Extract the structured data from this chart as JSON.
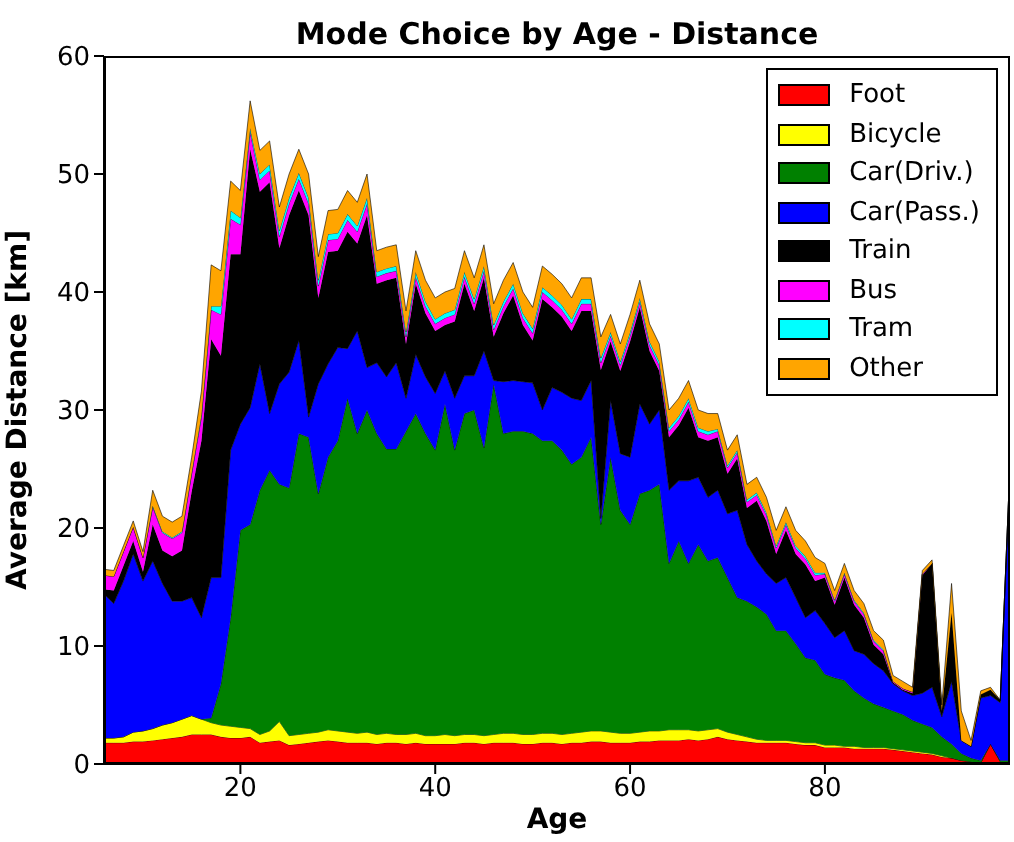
{
  "chart_data": {
    "type": "area",
    "title": "Mode Choice by Age - Distance",
    "xlabel": "Age",
    "ylabel": "Average Distance [km]",
    "stacked": true,
    "legend": "top right",
    "xlim": [
      6,
      99
    ],
    "xticks": [
      20,
      40,
      60,
      80
    ],
    "ylim": [
      0,
      60
    ],
    "yticks": [
      0,
      10,
      20,
      30,
      40,
      50,
      60
    ],
    "x": [
      6,
      7,
      8,
      9,
      10,
      11,
      12,
      13,
      14,
      15,
      16,
      17,
      18,
      19,
      20,
      21,
      22,
      23,
      24,
      25,
      26,
      27,
      28,
      29,
      30,
      31,
      32,
      33,
      34,
      35,
      36,
      37,
      38,
      39,
      40,
      41,
      42,
      43,
      44,
      45,
      46,
      47,
      48,
      49,
      50,
      51,
      52,
      53,
      54,
      55,
      56,
      57,
      58,
      59,
      60,
      61,
      62,
      63,
      64,
      65,
      66,
      67,
      68,
      69,
      70,
      71,
      72,
      73,
      74,
      75,
      76,
      77,
      78,
      79,
      80,
      81,
      82,
      83,
      84,
      85,
      86,
      87,
      88,
      89,
      90,
      91,
      92,
      93,
      94,
      95,
      96,
      97,
      98,
      99
    ],
    "series": [
      {
        "name": "Foot",
        "color": "#ff0000",
        "values": [
          1.8,
          1.8,
          1.8,
          1.9,
          1.9,
          2.0,
          2.1,
          2.2,
          2.3,
          2.5,
          2.5,
          2.5,
          2.3,
          2.2,
          2.2,
          2.3,
          1.8,
          1.9,
          2.0,
          1.6,
          1.7,
          1.8,
          1.9,
          2.0,
          1.9,
          1.8,
          1.8,
          1.8,
          1.7,
          1.8,
          1.8,
          1.7,
          1.8,
          1.7,
          1.7,
          1.7,
          1.7,
          1.8,
          1.8,
          1.7,
          1.8,
          1.8,
          1.8,
          1.7,
          1.7,
          1.8,
          1.8,
          1.7,
          1.8,
          1.8,
          1.9,
          1.9,
          1.8,
          1.8,
          1.8,
          1.9,
          1.9,
          2.0,
          2.0,
          2.0,
          2.1,
          2.0,
          2.1,
          2.3,
          2.1,
          2.0,
          1.9,
          1.8,
          1.8,
          1.8,
          1.8,
          1.7,
          1.6,
          1.6,
          1.4,
          1.4,
          1.4,
          1.3,
          1.3,
          1.3,
          1.3,
          1.2,
          1.1,
          1.0,
          0.9,
          0.8,
          0.6,
          0.5,
          0.3,
          0.2,
          0.1,
          1.7,
          0.2,
          0.1
        ]
      },
      {
        "name": "Bicycle",
        "color": "#ffff00",
        "values": [
          0.4,
          0.4,
          0.5,
          0.8,
          0.9,
          1.0,
          1.2,
          1.3,
          1.5,
          1.6,
          1.3,
          1.0,
          1.0,
          1.0,
          0.9,
          0.7,
          0.7,
          0.9,
          1.6,
          0.8,
          0.8,
          0.8,
          0.8,
          0.9,
          0.9,
          0.9,
          0.8,
          0.9,
          0.8,
          0.8,
          0.7,
          0.8,
          0.8,
          0.7,
          0.7,
          0.8,
          0.7,
          0.7,
          0.7,
          0.7,
          0.7,
          0.8,
          0.8,
          0.8,
          0.8,
          0.8,
          0.8,
          0.8,
          0.8,
          0.9,
          0.9,
          0.9,
          0.9,
          0.8,
          0.8,
          0.8,
          0.9,
          0.8,
          0.9,
          0.9,
          0.8,
          0.8,
          0.8,
          0.7,
          0.6,
          0.5,
          0.4,
          0.3,
          0.2,
          0.2,
          0.2,
          0.2,
          0.2,
          0.2,
          0.2,
          0.2,
          0.1,
          0.2,
          0.1,
          0.1,
          0.1,
          0.1,
          0.1,
          0.1,
          0.1,
          0.1,
          0.1,
          0,
          0,
          0,
          0,
          0,
          0,
          0
        ]
      },
      {
        "name": "Car(Driv.)",
        "color": "#008000",
        "values": [
          0,
          0,
          0,
          0,
          0,
          0,
          0,
          0,
          0,
          0,
          0,
          0.4,
          3.5,
          9.2,
          16.7,
          17.3,
          20.7,
          22.1,
          20.1,
          21.0,
          25.5,
          25.1,
          20.2,
          23.1,
          24.6,
          28.3,
          25.4,
          27.3,
          25.5,
          24.1,
          24.2,
          25.7,
          27.1,
          25.6,
          24.2,
          28.0,
          24.2,
          27.2,
          27.5,
          24.4,
          29.7,
          25.4,
          25.6,
          25.7,
          25.5,
          24.8,
          24.8,
          24.1,
          22.8,
          23.3,
          24.9,
          17.5,
          23.3,
          18.9,
          17.7,
          20.2,
          20.4,
          20.9,
          14.1,
          16.0,
          14.1,
          15.8,
          14.3,
          14.5,
          13.1,
          11.6,
          11.5,
          11.2,
          10.7,
          9.3,
          9.3,
          8.3,
          7.2,
          7.0,
          6.0,
          5.7,
          5.6,
          4.7,
          4.2,
          3.7,
          3.4,
          3.2,
          3.0,
          2.6,
          2.4,
          2.2,
          1.6,
          1.2,
          0.6,
          0.3,
          0.2,
          0,
          0.1,
          0.2
        ]
      },
      {
        "name": "Car(Pass.)",
        "color": "#0000ff",
        "values": [
          12.2,
          11.4,
          13.2,
          15.1,
          12.7,
          14.2,
          12.0,
          10.3,
          10.0,
          10.0,
          8.6,
          11.9,
          9.0,
          14.2,
          9.0,
          9.9,
          10.7,
          4.8,
          8.5,
          9.8,
          7.9,
          1.7,
          9.3,
          7.9,
          7.9,
          4.2,
          8.7,
          3.6,
          6.0,
          6.1,
          7.3,
          2.8,
          5.0,
          4.8,
          4.8,
          2.8,
          4.4,
          3.2,
          2.9,
          8.2,
          0.3,
          4.4,
          4.3,
          4.2,
          4.3,
          2.6,
          4.5,
          4.9,
          5.6,
          4.8,
          4.8,
          0.5,
          4.8,
          4.8,
          5.7,
          7.6,
          5.6,
          6.3,
          6.2,
          5.1,
          7.0,
          5.7,
          5.4,
          5.7,
          5.4,
          7.4,
          4.8,
          3.9,
          3.4,
          4.0,
          4.5,
          3.9,
          3.4,
          4.2,
          4.3,
          3.4,
          4.2,
          3.4,
          3.7,
          3.4,
          3.1,
          2.3,
          2.0,
          2.1,
          2.6,
          3.4,
          1.7,
          5.3,
          1.1,
          1.0,
          5.3,
          4.1,
          4.9,
          24.2
        ]
      },
      {
        "name": "Train",
        "color": "#000000",
        "values": [
          0.4,
          1.1,
          1.3,
          1.1,
          0.8,
          3.1,
          2.8,
          3.8,
          4.3,
          9.0,
          15,
          20.2,
          18.8,
          16.6,
          14.4,
          21.9,
          14.6,
          19.6,
          11.5,
          13.3,
          12.7,
          17.1,
          7.3,
          9.5,
          8.2,
          9.9,
          7.4,
          12.9,
          6.7,
          8.2,
          7.2,
          4.6,
          6.0,
          5.4,
          5.3,
          3.9,
          6.5,
          7.8,
          5.5,
          6.2,
          3.7,
          5.8,
          7.2,
          4.8,
          3.6,
          9.4,
          6.8,
          6.4,
          5.7,
          7.6,
          5.9,
          12.6,
          5.0,
          7.0,
          9.8,
          8.2,
          6.2,
          3.3,
          4.5,
          4.7,
          6.2,
          3.4,
          4.8,
          4.5,
          3.4,
          4.4,
          3.1,
          5.1,
          4.5,
          2.5,
          4.0,
          3.7,
          4.5,
          2.5,
          3.9,
          2.8,
          4.5,
          3.9,
          3.1,
          1.6,
          1.4,
          0.1,
          0.1,
          0.2,
          10.0,
          10.5,
          0.5,
          5.8,
          0,
          0,
          0.3,
          0.5,
          0.2,
          0.9
        ]
      },
      {
        "name": "Bus",
        "color": "#ff00ff",
        "values": [
          1.2,
          1.2,
          1.2,
          1.2,
          1.2,
          1.5,
          1.5,
          1.5,
          1.5,
          1.5,
          2,
          2.5,
          3.5,
          3,
          2.5,
          1.5,
          1,
          1,
          1,
          1,
          1,
          1,
          1,
          1,
          1,
          1,
          1,
          1,
          0.6,
          0.6,
          0.6,
          0.6,
          0.6,
          0.6,
          0.6,
          0.6,
          0.6,
          0.6,
          0.6,
          0.6,
          0.6,
          0.6,
          0.6,
          0.6,
          0.6,
          0.6,
          0.6,
          0.6,
          0.6,
          0.6,
          0.6,
          0.6,
          0.5,
          0.5,
          0.5,
          0.5,
          0.5,
          0.5,
          0.5,
          0.5,
          0.5,
          0.5,
          0.5,
          0.5,
          0.5,
          0.5,
          0.5,
          0.5,
          0.5,
          0.5,
          0.5,
          0.5,
          0.5,
          0.5,
          0.3,
          0.3,
          0.3,
          0.3,
          0.3,
          0.3,
          0.3,
          0.1,
          0.1,
          0.1,
          0.1,
          0,
          0,
          0,
          0,
          0,
          0,
          0,
          0,
          0
        ]
      },
      {
        "name": "Tram",
        "color": "#00ffff",
        "values": [
          0,
          0,
          0,
          0,
          0,
          0.1,
          0.1,
          0.1,
          0.1,
          0.1,
          0.2,
          0.3,
          0.7,
          0.7,
          0.6,
          0.3,
          0.5,
          0.5,
          0.5,
          0.5,
          0.5,
          0.5,
          0.5,
          0.5,
          0.5,
          0.5,
          0.5,
          0.5,
          0.4,
          0.4,
          0.4,
          0.4,
          0.4,
          0.4,
          0.4,
          0.4,
          0.4,
          0.4,
          0.4,
          0.4,
          0.4,
          0.4,
          0.4,
          0.4,
          0.4,
          0.4,
          0.4,
          0.4,
          0.4,
          0.4,
          0.4,
          0.4,
          0.3,
          0.3,
          0.3,
          0.3,
          0.3,
          0.3,
          0.3,
          0.3,
          0.3,
          0.3,
          0.3,
          0.2,
          0.2,
          0.2,
          0.2,
          0.2,
          0.2,
          0.2,
          0.2,
          0.2,
          0.2,
          0.2,
          0.1,
          0.1,
          0.1,
          0.1,
          0.1,
          0.1,
          0.1,
          0,
          0,
          0,
          0,
          0,
          0,
          0,
          0,
          0,
          0,
          0,
          0,
          0
        ]
      },
      {
        "name": "Other",
        "color": "#ffa500",
        "values": [
          0.5,
          0.5,
          0.5,
          0.5,
          0.5,
          1.3,
          1.3,
          1.3,
          1.3,
          1.3,
          2,
          3.5,
          3,
          2.5,
          2.3,
          2.3,
          2,
          2,
          2,
          2,
          2,
          2,
          2,
          2,
          2,
          2,
          2,
          2,
          1.8,
          1.8,
          1.8,
          1.8,
          1.8,
          1.8,
          1.8,
          1.8,
          1.8,
          1.8,
          1.8,
          1.8,
          1.8,
          1.8,
          1.8,
          1.8,
          1.8,
          1.8,
          1.8,
          1.8,
          1.8,
          1.8,
          1.8,
          1.8,
          1.5,
          1.5,
          1.5,
          1.5,
          1.5,
          1.5,
          1.5,
          1.5,
          1.5,
          1.5,
          1.5,
          1.3,
          1.3,
          1.3,
          1.3,
          1.3,
          1.3,
          1.3,
          1.3,
          1.3,
          1.3,
          1.3,
          0.8,
          0.8,
          0.8,
          0.8,
          0.8,
          0.8,
          0.8,
          0.5,
          0.6,
          0.4,
          0.3,
          0.3,
          0.5,
          2.5,
          2.5,
          0.5,
          0.3,
          0.2,
          0,
          0
        ]
      }
    ]
  }
}
